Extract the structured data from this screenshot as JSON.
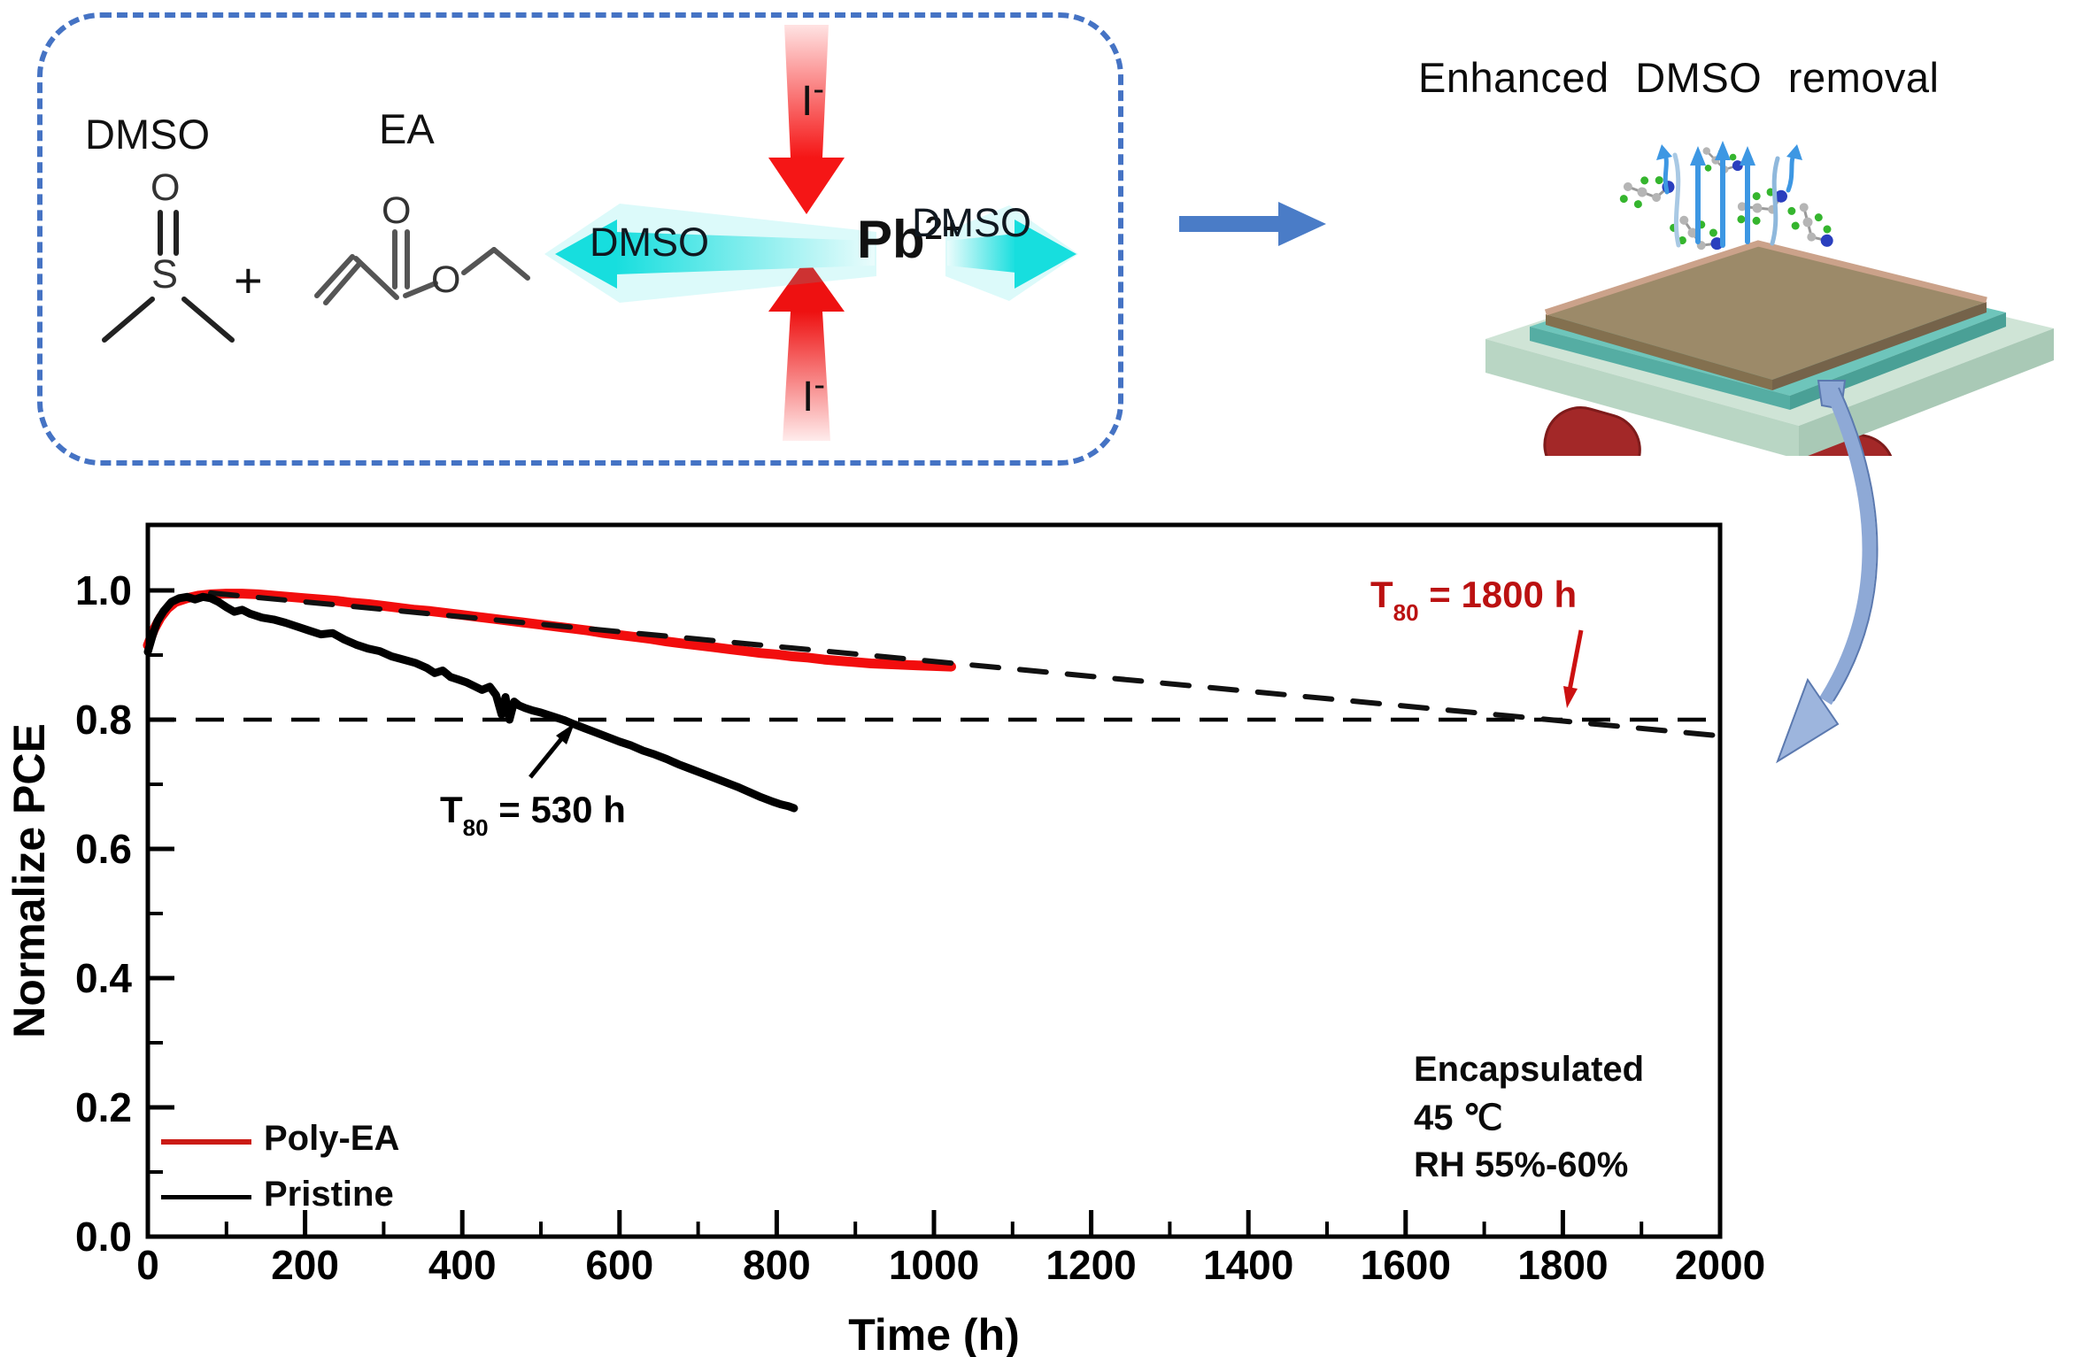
{
  "figure": {
    "title": "Enhanced DMSO removal"
  },
  "scheme": {
    "dmso_label": "DMSO",
    "ea_label": "EA",
    "plus": "+",
    "dmso_atom_o": "O",
    "dmso_atom_s": "S",
    "ea_atom_o_carbonyl": "O",
    "ea_atom_o_ester": "O",
    "pb": "Pb",
    "pb_charge": "2+",
    "iodide": "I",
    "iodide_charge": "-",
    "dmso_released_left": "DMSO",
    "dmso_released_right": "DMSO",
    "box_border_color": "#4573c4",
    "iodide_arrow_color": "#f01515",
    "dmso_arrow_color": "#17dede"
  },
  "device": {
    "film_color": "#9c8a69",
    "interlayer_color": "#6ec5bb",
    "substrate_color": "#cfe4d6",
    "leg_color": "#a32828",
    "escape_arrow_color": "#3d97e3",
    "molecule_colors": {
      "carbon": "#b5b5b5",
      "green": "#35b52e",
      "blue": "#2a3fbe"
    }
  },
  "connector_arrows": {
    "straight_color": "#4a7cc7",
    "curved_color": "#8ea9d6"
  },
  "chart_data": {
    "type": "line",
    "title": "",
    "xlabel": "Time (h)",
    "ylabel": "Normalize PCE",
    "xlim": [
      0,
      2000
    ],
    "ylim": [
      0.0,
      1.1
    ],
    "x_ticks": [
      0,
      200,
      400,
      600,
      800,
      1000,
      1200,
      1400,
      1600,
      1800,
      2000
    ],
    "x_minor_step": 100,
    "y_ticks": [
      "0.0",
      "0.2",
      "0.4",
      "0.6",
      "0.8",
      "1.0"
    ],
    "y_minor_step": 0.1,
    "grid": false,
    "legend_position": "lower-left",
    "reference_line": {
      "y": 0.8,
      "style": "dashed",
      "color": "#000000"
    },
    "series": [
      {
        "name": "Poly-EA",
        "color": "#f20d0d",
        "width": 11,
        "x": [
          0,
          8,
          16,
          25,
          35,
          50,
          65,
          80,
          100,
          120,
          140,
          160,
          180,
          200,
          220,
          240,
          260,
          280,
          300,
          320,
          340,
          360,
          380,
          400,
          420,
          440,
          460,
          480,
          500,
          520,
          540,
          560,
          580,
          600,
          620,
          640,
          660,
          680,
          700,
          720,
          740,
          760,
          780,
          800,
          820,
          840,
          860,
          880,
          900,
          920,
          940,
          960,
          980,
          1000,
          1022
        ],
        "y": [
          0.915,
          0.94,
          0.958,
          0.972,
          0.982,
          0.988,
          0.992,
          0.994,
          0.995,
          0.995,
          0.994,
          0.992,
          0.99,
          0.988,
          0.986,
          0.984,
          0.981,
          0.979,
          0.976,
          0.973,
          0.97,
          0.968,
          0.965,
          0.962,
          0.959,
          0.956,
          0.953,
          0.95,
          0.947,
          0.944,
          0.941,
          0.938,
          0.934,
          0.931,
          0.928,
          0.925,
          0.921,
          0.918,
          0.915,
          0.912,
          0.909,
          0.906,
          0.903,
          0.901,
          0.898,
          0.896,
          0.893,
          0.891,
          0.889,
          0.887,
          0.886,
          0.885,
          0.884,
          0.883,
          0.882
        ]
      },
      {
        "name": "Pristine",
        "color": "#000000",
        "width": 9,
        "x": [
          0,
          6,
          12,
          20,
          30,
          40,
          50,
          60,
          70,
          80,
          90,
          100,
          110,
          120,
          130,
          145,
          160,
          175,
          190,
          205,
          220,
          235,
          250,
          265,
          280,
          295,
          310,
          325,
          340,
          355,
          365,
          375,
          385,
          395,
          405,
          415,
          425,
          435,
          443,
          450,
          455,
          460,
          466,
          472,
          480,
          490,
          500,
          510,
          520,
          530,
          542,
          555,
          570,
          585,
          600,
          615,
          630,
          645,
          660,
          675,
          690,
          705,
          720,
          735,
          750,
          765,
          780,
          795,
          805,
          815,
          822
        ],
        "y": [
          0.905,
          0.93,
          0.952,
          0.968,
          0.982,
          0.988,
          0.99,
          0.986,
          0.99,
          0.988,
          0.982,
          0.974,
          0.967,
          0.97,
          0.964,
          0.958,
          0.955,
          0.95,
          0.944,
          0.938,
          0.932,
          0.934,
          0.924,
          0.916,
          0.91,
          0.906,
          0.898,
          0.893,
          0.888,
          0.88,
          0.872,
          0.876,
          0.866,
          0.862,
          0.858,
          0.852,
          0.846,
          0.851,
          0.838,
          0.808,
          0.835,
          0.8,
          0.828,
          0.822,
          0.818,
          0.814,
          0.811,
          0.807,
          0.803,
          0.799,
          0.793,
          0.787,
          0.78,
          0.773,
          0.766,
          0.76,
          0.752,
          0.746,
          0.739,
          0.731,
          0.724,
          0.717,
          0.71,
          0.703,
          0.696,
          0.688,
          0.68,
          0.673,
          0.669,
          0.666,
          0.663
        ]
      },
      {
        "name": "Poly-EA extrapolation",
        "color": "#111111",
        "width": 6,
        "dash": "30 24",
        "x": [
          80,
          2000
        ],
        "y": [
          0.996,
          0.775
        ]
      }
    ],
    "legend": [
      {
        "label": "Poly-EA",
        "color": "#cb1b15"
      },
      {
        "label": "Pristine",
        "color": "#000000"
      }
    ],
    "annotations": [
      {
        "id": "t80_polyea",
        "prefix": "T",
        "sub": "80",
        "rest": " = 1800 h",
        "color": "#bb1111"
      },
      {
        "id": "t80_pristine",
        "prefix": "T",
        "sub": "80",
        "rest": " = 530 h",
        "color": "#000000"
      }
    ],
    "conditions": [
      "Encapsulated",
      "45 ℃",
      "RH 55%-60%"
    ]
  }
}
